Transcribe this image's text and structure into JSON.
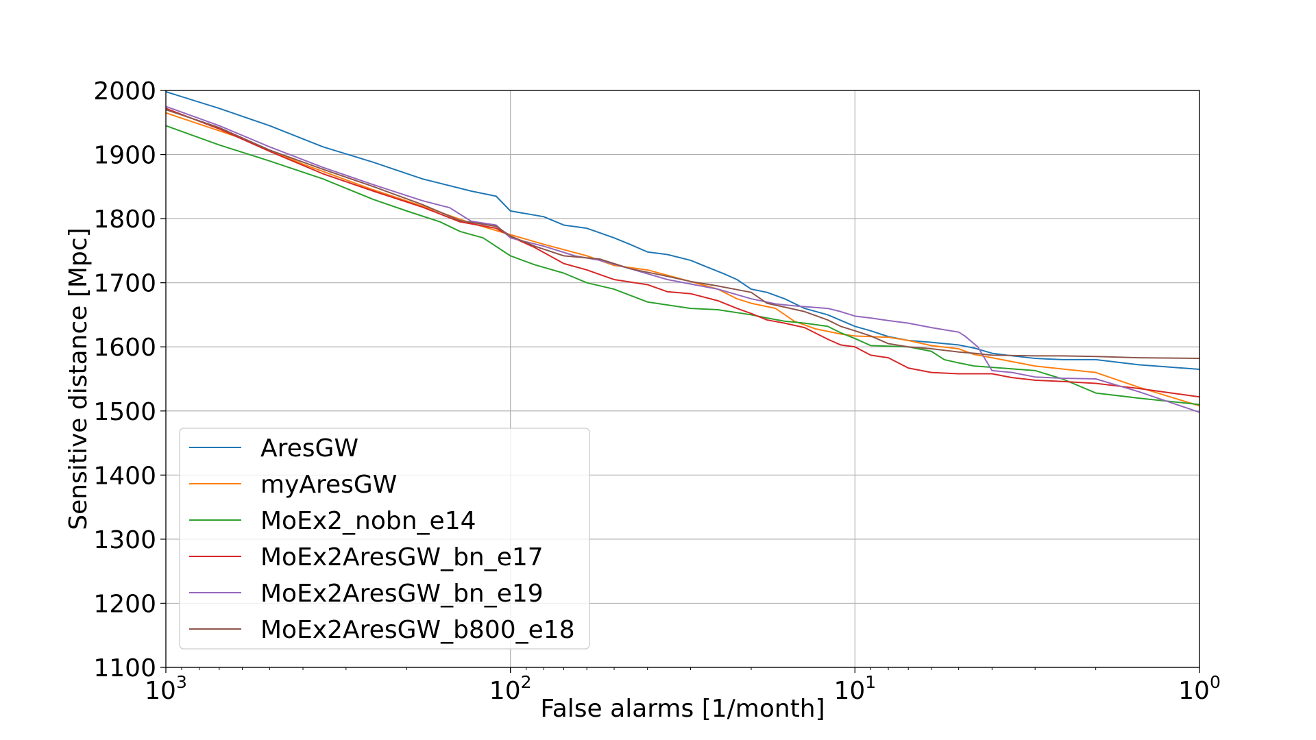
{
  "chart_data": {
    "type": "line",
    "title": "",
    "xlabel": "False alarms [1/month]",
    "ylabel": "Sensitive distance [Mpc]",
    "x_scale": "log",
    "x_reversed": true,
    "xlim": [
      1000,
      1
    ],
    "ylim": [
      1100,
      2000
    ],
    "x_ticks": [
      {
        "value": 1000,
        "base": "10",
        "exp": "3"
      },
      {
        "value": 100,
        "base": "10",
        "exp": "2"
      },
      {
        "value": 10,
        "base": "10",
        "exp": "1"
      },
      {
        "value": 1,
        "base": "10",
        "exp": "0"
      }
    ],
    "y_ticks": [
      1100,
      1200,
      1300,
      1400,
      1500,
      1600,
      1700,
      1800,
      1900,
      2000
    ],
    "grid": true,
    "legend_position": "lower-left",
    "series": [
      {
        "name": "AresGW",
        "color": "#1f77b4",
        "points": [
          [
            1000,
            1998
          ],
          [
            700,
            1972
          ],
          [
            500,
            1945
          ],
          [
            350,
            1912
          ],
          [
            250,
            1888
          ],
          [
            180,
            1862
          ],
          [
            130,
            1843
          ],
          [
            110,
            1835
          ],
          [
            100,
            1812
          ],
          [
            80,
            1803
          ],
          [
            70,
            1790
          ],
          [
            60,
            1785
          ],
          [
            50,
            1770
          ],
          [
            45,
            1760
          ],
          [
            40,
            1748
          ],
          [
            35,
            1744
          ],
          [
            30,
            1735
          ],
          [
            27,
            1725
          ],
          [
            24,
            1714
          ],
          [
            22,
            1705
          ],
          [
            20,
            1690
          ],
          [
            18,
            1685
          ],
          [
            16,
            1675
          ],
          [
            14,
            1660
          ],
          [
            12,
            1650
          ],
          [
            10,
            1632
          ],
          [
            9,
            1625
          ],
          [
            8,
            1616
          ],
          [
            7,
            1610
          ],
          [
            6,
            1607
          ],
          [
            5,
            1603
          ],
          [
            4.5,
            1598
          ],
          [
            4,
            1590
          ],
          [
            3.5,
            1586
          ],
          [
            3,
            1582
          ],
          [
            2.5,
            1580
          ],
          [
            2,
            1580
          ],
          [
            1.5,
            1572
          ],
          [
            1,
            1565
          ]
        ]
      },
      {
        "name": "myAresGW",
        "color": "#ff7f0e",
        "points": [
          [
            1000,
            1965
          ],
          [
            600,
            1925
          ],
          [
            400,
            1885
          ],
          [
            250,
            1845
          ],
          [
            170,
            1815
          ],
          [
            130,
            1793
          ],
          [
            100,
            1775
          ],
          [
            80,
            1760
          ],
          [
            60,
            1742
          ],
          [
            50,
            1727
          ],
          [
            40,
            1720
          ],
          [
            30,
            1702
          ],
          [
            25,
            1690
          ],
          [
            22,
            1675
          ],
          [
            20,
            1668
          ],
          [
            17,
            1660
          ],
          [
            15,
            1640
          ],
          [
            13,
            1628
          ],
          [
            11,
            1620
          ],
          [
            10,
            1617
          ],
          [
            8,
            1615
          ],
          [
            7,
            1610
          ],
          [
            6,
            1602
          ],
          [
            5,
            1597
          ],
          [
            4.5,
            1588
          ],
          [
            4,
            1583
          ],
          [
            3,
            1570
          ],
          [
            2,
            1560
          ],
          [
            1.5,
            1537
          ],
          [
            1,
            1508
          ]
        ]
      },
      {
        "name": "MoEx2_nobn_e14",
        "color": "#2ca02c",
        "points": [
          [
            1000,
            1945
          ],
          [
            700,
            1915
          ],
          [
            500,
            1890
          ],
          [
            350,
            1862
          ],
          [
            250,
            1830
          ],
          [
            200,
            1812
          ],
          [
            160,
            1795
          ],
          [
            140,
            1780
          ],
          [
            120,
            1770
          ],
          [
            100,
            1742
          ],
          [
            85,
            1728
          ],
          [
            70,
            1715
          ],
          [
            60,
            1700
          ],
          [
            50,
            1690
          ],
          [
            40,
            1670
          ],
          [
            30,
            1660
          ],
          [
            25,
            1658
          ],
          [
            20,
            1650
          ],
          [
            18,
            1645
          ],
          [
            16,
            1640
          ],
          [
            14,
            1637
          ],
          [
            12,
            1632
          ],
          [
            11,
            1622
          ],
          [
            10,
            1613
          ],
          [
            9,
            1602
          ],
          [
            7,
            1600
          ],
          [
            6,
            1593
          ],
          [
            5.5,
            1580
          ],
          [
            5,
            1575
          ],
          [
            4.5,
            1570
          ],
          [
            4,
            1568
          ],
          [
            3,
            1563
          ],
          [
            2.5,
            1550
          ],
          [
            2,
            1528
          ],
          [
            1.5,
            1520
          ],
          [
            1,
            1510
          ]
        ]
      },
      {
        "name": "MoEx2AresGW_bn_e17",
        "color": "#d62728",
        "points": [
          [
            1000,
            1972
          ],
          [
            700,
            1940
          ],
          [
            500,
            1905
          ],
          [
            350,
            1870
          ],
          [
            250,
            1843
          ],
          [
            180,
            1818
          ],
          [
            140,
            1795
          ],
          [
            110,
            1785
          ],
          [
            100,
            1772
          ],
          [
            85,
            1755
          ],
          [
            70,
            1730
          ],
          [
            60,
            1720
          ],
          [
            50,
            1705
          ],
          [
            40,
            1697
          ],
          [
            35,
            1686
          ],
          [
            30,
            1683
          ],
          [
            25,
            1672
          ],
          [
            22,
            1660
          ],
          [
            20,
            1652
          ],
          [
            18,
            1642
          ],
          [
            16,
            1637
          ],
          [
            14,
            1630
          ],
          [
            12,
            1612
          ],
          [
            11,
            1603
          ],
          [
            10,
            1600
          ],
          [
            9,
            1587
          ],
          [
            8,
            1583
          ],
          [
            7,
            1567
          ],
          [
            6,
            1560
          ],
          [
            5,
            1558
          ],
          [
            4,
            1558
          ],
          [
            3.5,
            1552
          ],
          [
            3,
            1548
          ],
          [
            2.5,
            1546
          ],
          [
            2,
            1543
          ],
          [
            1.5,
            1535
          ],
          [
            1,
            1522
          ]
        ]
      },
      {
        "name": "MoEx2AresGW_bn_e19",
        "color": "#9467bd",
        "points": [
          [
            1000,
            1975
          ],
          [
            700,
            1945
          ],
          [
            500,
            1912
          ],
          [
            350,
            1880
          ],
          [
            250,
            1853
          ],
          [
            180,
            1828
          ],
          [
            150,
            1817
          ],
          [
            130,
            1796
          ],
          [
            110,
            1790
          ],
          [
            100,
            1770
          ],
          [
            80,
            1757
          ],
          [
            65,
            1742
          ],
          [
            55,
            1735
          ],
          [
            45,
            1722
          ],
          [
            35,
            1705
          ],
          [
            30,
            1698
          ],
          [
            25,
            1690
          ],
          [
            20,
            1675
          ],
          [
            17,
            1667
          ],
          [
            15,
            1664
          ],
          [
            12,
            1660
          ],
          [
            11,
            1655
          ],
          [
            10,
            1648
          ],
          [
            9,
            1645
          ],
          [
            8,
            1641
          ],
          [
            7,
            1637
          ],
          [
            6,
            1630
          ],
          [
            5,
            1623
          ],
          [
            4.8,
            1617
          ],
          [
            4.4,
            1600
          ],
          [
            4,
            1563
          ],
          [
            3.5,
            1560
          ],
          [
            3,
            1553
          ],
          [
            2.5,
            1551
          ],
          [
            2,
            1550
          ],
          [
            1.5,
            1530
          ],
          [
            1,
            1498
          ]
        ]
      },
      {
        "name": "MoEx2AresGW_b800_e18",
        "color": "#8c564b",
        "points": [
          [
            1000,
            1970
          ],
          [
            700,
            1942
          ],
          [
            500,
            1907
          ],
          [
            350,
            1877
          ],
          [
            250,
            1850
          ],
          [
            180,
            1822
          ],
          [
            140,
            1797
          ],
          [
            110,
            1788
          ],
          [
            100,
            1773
          ],
          [
            85,
            1757
          ],
          [
            70,
            1742
          ],
          [
            55,
            1737
          ],
          [
            45,
            1722
          ],
          [
            35,
            1710
          ],
          [
            30,
            1702
          ],
          [
            25,
            1695
          ],
          [
            20,
            1685
          ],
          [
            18,
            1668
          ],
          [
            16,
            1662
          ],
          [
            14,
            1655
          ],
          [
            12,
            1642
          ],
          [
            11,
            1632
          ],
          [
            10,
            1625
          ],
          [
            9,
            1617
          ],
          [
            8,
            1605
          ],
          [
            7,
            1600
          ],
          [
            6,
            1597
          ],
          [
            5,
            1592
          ],
          [
            4.5,
            1590
          ],
          [
            4,
            1587
          ],
          [
            3,
            1586
          ],
          [
            2.5,
            1586
          ],
          [
            2,
            1585
          ],
          [
            1.5,
            1583
          ],
          [
            1,
            1582
          ]
        ]
      }
    ]
  }
}
